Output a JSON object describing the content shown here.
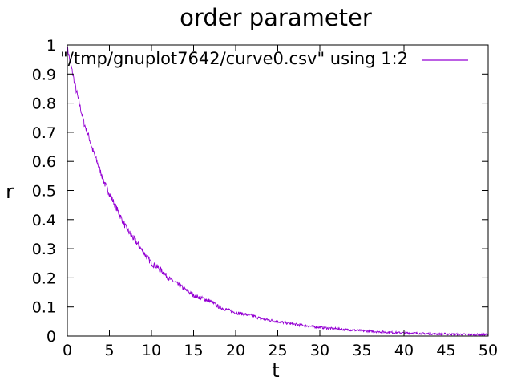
{
  "chart_data": {
    "type": "line",
    "title": "order parameter",
    "xlabel": "t",
    "ylabel": "r",
    "xlim": [
      0,
      50
    ],
    "ylim": [
      0,
      1
    ],
    "xticks": [
      "0",
      "5",
      "10",
      "15",
      "20",
      "25",
      "30",
      "35",
      "40",
      "45",
      "50"
    ],
    "yticks": [
      "0",
      "0.1",
      "0.2",
      "0.3",
      "0.4",
      "0.5",
      "0.6",
      "0.7",
      "0.8",
      "0.9",
      "1"
    ],
    "grid": false,
    "legend_position": "top-right",
    "series": [
      {
        "name": "\"/tmp/gnuplot7642/curve0.csv\" using 1:2",
        "color": "#9400d3",
        "x": [
          0,
          0.5,
          1,
          1.5,
          2,
          2.5,
          3,
          3.5,
          4,
          4.5,
          5,
          6,
          7,
          8,
          9,
          10,
          11,
          12,
          13,
          14,
          15,
          16,
          17,
          18,
          19,
          20,
          21,
          22,
          23,
          24,
          25,
          26,
          27,
          28,
          29,
          30,
          31,
          32,
          33,
          34,
          35,
          36,
          37,
          38,
          39,
          40,
          41,
          42,
          43,
          44,
          45,
          46,
          47,
          48,
          49,
          50
        ],
        "y": [
          0.99,
          0.92,
          0.85,
          0.79,
          0.73,
          0.69,
          0.64,
          0.6,
          0.56,
          0.52,
          0.49,
          0.43,
          0.37,
          0.33,
          0.29,
          0.25,
          0.23,
          0.2,
          0.18,
          0.16,
          0.14,
          0.13,
          0.12,
          0.1,
          0.09,
          0.08,
          0.075,
          0.07,
          0.06,
          0.055,
          0.05,
          0.045,
          0.04,
          0.037,
          0.033,
          0.03,
          0.027,
          0.025,
          0.022,
          0.02,
          0.018,
          0.016,
          0.015,
          0.013,
          0.012,
          0.011,
          0.01,
          0.009,
          0.008,
          0.007,
          0.007,
          0.006,
          0.006,
          0.005,
          0.005,
          0.005
        ]
      }
    ]
  }
}
